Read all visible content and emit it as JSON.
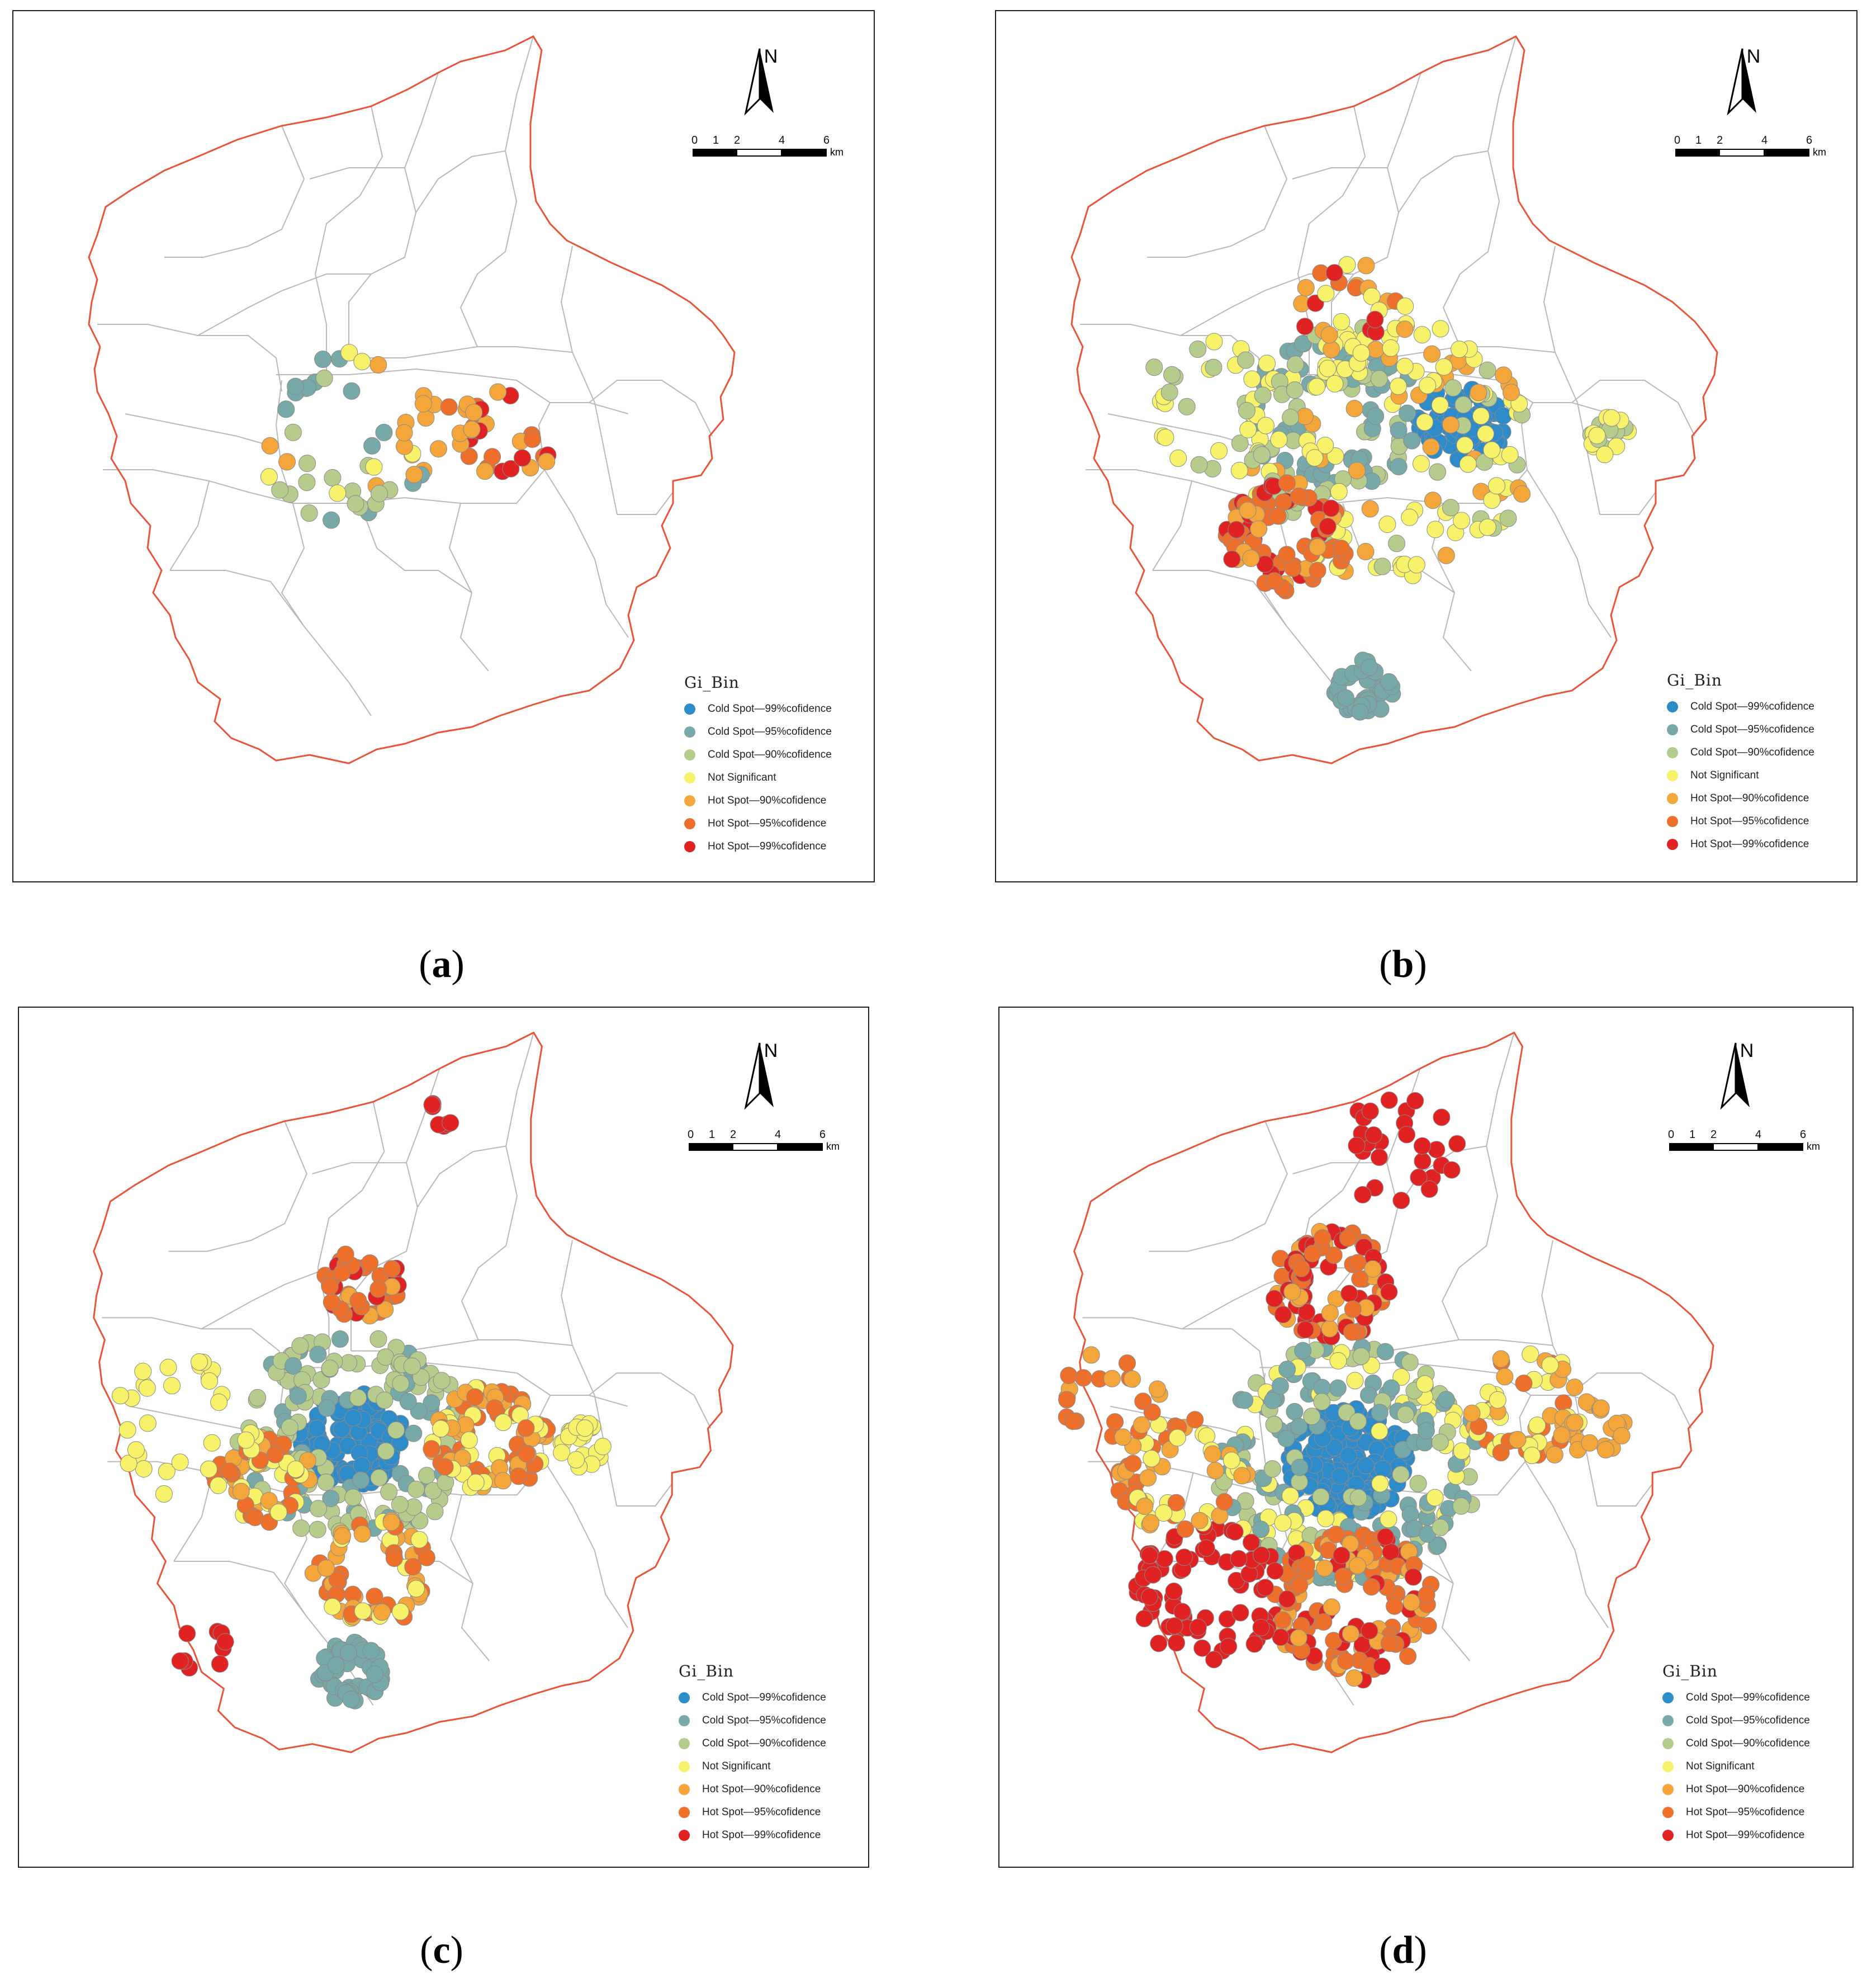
{
  "legend": {
    "title": "Gi_Bin",
    "items": [
      {
        "label": "Cold Spot—99%cofidence",
        "color": "#2e8bc9"
      },
      {
        "label": "Cold Spot—95%cofidence",
        "color": "#76a9a8"
      },
      {
        "label": "Cold Spot—90%cofidence",
        "color": "#b5cc8c"
      },
      {
        "label": "Not Significant",
        "color": "#f6f26a"
      },
      {
        "label": "Hot Spot—90%cofidence",
        "color": "#f4a63a"
      },
      {
        "label": "Hot Spot—95%cofidence",
        "color": "#ee6f2a"
      },
      {
        "label": "Hot Spot—99%cofidence",
        "color": "#e02222"
      }
    ]
  },
  "north_label": "N",
  "scale": {
    "ticks": [
      "0",
      "1",
      "2",
      "4",
      "6"
    ],
    "unit": "km"
  },
  "panels": [
    {
      "id": "a",
      "caption": "a"
    },
    {
      "id": "b",
      "caption": "b"
    },
    {
      "id": "c",
      "caption": "c"
    },
    {
      "id": "d",
      "caption": "d"
    }
  ],
  "colors": {
    "boundary": "#e8543a",
    "district": "#b8b8b8"
  }
}
